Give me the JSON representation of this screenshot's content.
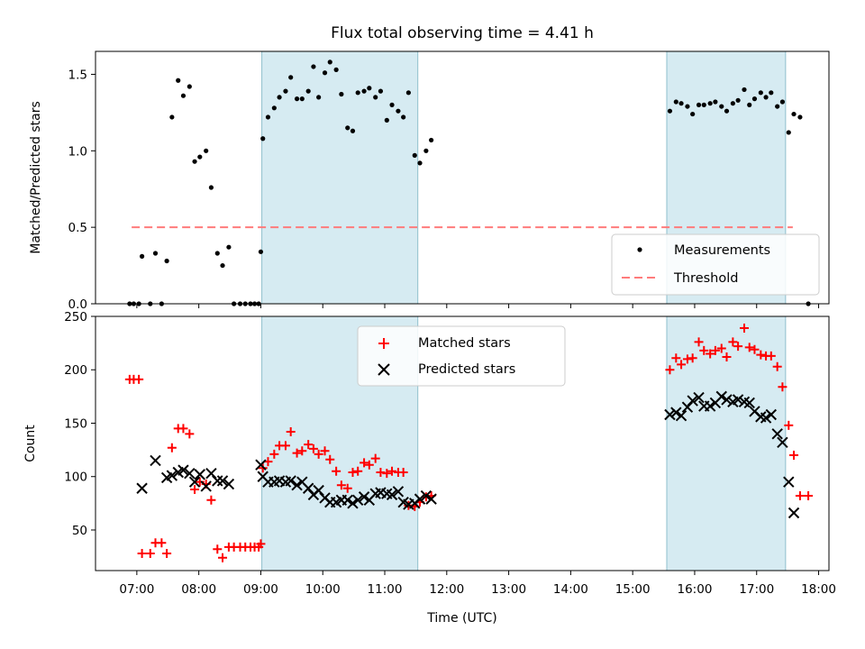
{
  "title": "Flux total observing time = 4.41 h",
  "chart_data": [
    {
      "type": "scatter",
      "ylabel": "Matched/Predicted stars",
      "ylim": [
        0,
        1.65
      ],
      "yticks": [
        "0.0",
        "0.5",
        "1.0",
        "1.5"
      ],
      "shaded_intervals": [
        [
          "09:01",
          "11:32"
        ],
        [
          "15:33",
          "17:28"
        ]
      ],
      "threshold": {
        "name": "Threshold",
        "value": 0.5,
        "x_range": [
          "06:55",
          "17:35"
        ],
        "color": "#ff7070"
      },
      "series": [
        {
          "name": "Measurements",
          "marker": "dot",
          "color": "#000000",
          "points": [
            [
              "06:53",
              0
            ],
            [
              "06:57",
              0
            ],
            [
              "07:02",
              0
            ],
            [
              "07:05",
              0.31
            ],
            [
              "07:13",
              0
            ],
            [
              "07:18",
              0.33
            ],
            [
              "07:24",
              0
            ],
            [
              "07:29",
              0.28
            ],
            [
              "07:34",
              1.22
            ],
            [
              "07:40",
              1.46
            ],
            [
              "07:45",
              1.36
            ],
            [
              "07:51",
              1.42
            ],
            [
              "07:56",
              0.93
            ],
            [
              "08:01",
              0.96
            ],
            [
              "08:07",
              1.0
            ],
            [
              "08:12",
              0.76
            ],
            [
              "08:18",
              0.33
            ],
            [
              "08:23",
              0.25
            ],
            [
              "08:29",
              0.37
            ],
            [
              "08:34",
              0
            ],
            [
              "08:40",
              0
            ],
            [
              "08:45",
              0
            ],
            [
              "08:50",
              0
            ],
            [
              "08:54",
              0
            ],
            [
              "08:58",
              0
            ],
            [
              "09:00",
              0.34
            ],
            [
              "09:02",
              1.08
            ],
            [
              "09:07",
              1.22
            ],
            [
              "09:13",
              1.28
            ],
            [
              "09:18",
              1.35
            ],
            [
              "09:24",
              1.39
            ],
            [
              "09:29",
              1.48
            ],
            [
              "09:35",
              1.34
            ],
            [
              "09:40",
              1.34
            ],
            [
              "09:46",
              1.39
            ],
            [
              "09:51",
              1.55
            ],
            [
              "09:56",
              1.35
            ],
            [
              "10:02",
              1.51
            ],
            [
              "10:07",
              1.58
            ],
            [
              "10:13",
              1.53
            ],
            [
              "10:18",
              1.37
            ],
            [
              "10:24",
              1.15
            ],
            [
              "10:29",
              1.13
            ],
            [
              "10:34",
              1.38
            ],
            [
              "10:40",
              1.39
            ],
            [
              "10:45",
              1.41
            ],
            [
              "10:51",
              1.35
            ],
            [
              "10:56",
              1.39
            ],
            [
              "11:02",
              1.2
            ],
            [
              "11:07",
              1.3
            ],
            [
              "11:13",
              1.26
            ],
            [
              "11:18",
              1.22
            ],
            [
              "11:23",
              1.38
            ],
            [
              "11:29",
              0.97
            ],
            [
              "11:34",
              0.92
            ],
            [
              "11:40",
              1.0
            ],
            [
              "11:45",
              1.07
            ],
            [
              "15:36",
              1.26
            ],
            [
              "15:42",
              1.32
            ],
            [
              "15:47",
              1.31
            ],
            [
              "15:53",
              1.29
            ],
            [
              "15:58",
              1.24
            ],
            [
              "16:04",
              1.3
            ],
            [
              "16:09",
              1.3
            ],
            [
              "16:15",
              1.31
            ],
            [
              "16:20",
              1.32
            ],
            [
              "16:26",
              1.29
            ],
            [
              "16:31",
              1.26
            ],
            [
              "16:37",
              1.31
            ],
            [
              "16:42",
              1.33
            ],
            [
              "16:48",
              1.4
            ],
            [
              "16:53",
              1.3
            ],
            [
              "16:58",
              1.34
            ],
            [
              "17:04",
              1.38
            ],
            [
              "17:09",
              1.35
            ],
            [
              "17:14",
              1.38
            ],
            [
              "17:20",
              1.29
            ],
            [
              "17:25",
              1.32
            ],
            [
              "17:31",
              1.12
            ],
            [
              "17:36",
              1.24
            ],
            [
              "17:42",
              1.22
            ],
            [
              "17:50",
              0
            ]
          ]
        }
      ],
      "legend": {
        "position": "lower-right",
        "entries": [
          "Measurements",
          "Threshold"
        ]
      }
    },
    {
      "type": "scatter",
      "xlabel": "Time (UTC)",
      "ylabel": "Count",
      "ylim": [
        12,
        250
      ],
      "yticks": [
        50,
        100,
        150,
        200,
        250
      ],
      "xlim": [
        "06:20",
        "18:10"
      ],
      "xticks": [
        "07:00",
        "08:00",
        "09:00",
        "10:00",
        "11:00",
        "12:00",
        "13:00",
        "14:00",
        "15:00",
        "16:00",
        "17:00",
        "18:00"
      ],
      "shaded_intervals": [
        [
          "09:01",
          "11:32"
        ],
        [
          "15:33",
          "17:28"
        ]
      ],
      "series": [
        {
          "name": "Matched stars",
          "marker": "plus",
          "color": "#ff0000",
          "points": [
            [
              "06:53",
              191
            ],
            [
              "06:57",
              191
            ],
            [
              "07:02",
              191
            ],
            [
              "07:05",
              28
            ],
            [
              "07:13",
              28
            ],
            [
              "07:18",
              38
            ],
            [
              "07:24",
              38
            ],
            [
              "07:29",
              28
            ],
            [
              "07:34",
              127
            ],
            [
              "07:40",
              145
            ],
            [
              "07:45",
              145
            ],
            [
              "07:51",
              140
            ],
            [
              "07:56",
              88
            ],
            [
              "08:01",
              95
            ],
            [
              "08:07",
              93
            ],
            [
              "08:12",
              78
            ],
            [
              "08:18",
              32
            ],
            [
              "08:23",
              24
            ],
            [
              "08:29",
              34
            ],
            [
              "08:34",
              34
            ],
            [
              "08:40",
              34
            ],
            [
              "08:45",
              34
            ],
            [
              "08:50",
              34
            ],
            [
              "08:54",
              34
            ],
            [
              "08:58",
              34
            ],
            [
              "09:00",
              37
            ],
            [
              "09:02",
              108
            ],
            [
              "09:07",
              114
            ],
            [
              "09:13",
              121
            ],
            [
              "09:18",
              129
            ],
            [
              "09:24",
              129
            ],
            [
              "09:29",
              142
            ],
            [
              "09:35",
              122
            ],
            [
              "09:40",
              124
            ],
            [
              "09:46",
              130
            ],
            [
              "09:51",
              126
            ],
            [
              "09:56",
              121
            ],
            [
              "10:02",
              124
            ],
            [
              "10:07",
              116
            ],
            [
              "10:13",
              105
            ],
            [
              "10:18",
              92
            ],
            [
              "10:24",
              89
            ],
            [
              "10:29",
              104
            ],
            [
              "10:34",
              105
            ],
            [
              "10:40",
              113
            ],
            [
              "10:45",
              111
            ],
            [
              "10:51",
              117
            ],
            [
              "10:56",
              104
            ],
            [
              "11:02",
              103
            ],
            [
              "11:07",
              105
            ],
            [
              "11:13",
              104
            ],
            [
              "11:18",
              104
            ],
            [
              "11:23",
              73
            ],
            [
              "11:29",
              72
            ],
            [
              "11:34",
              76
            ],
            [
              "11:40",
              81
            ],
            [
              "11:45",
              82
            ],
            [
              "15:36",
              200
            ],
            [
              "15:42",
              211
            ],
            [
              "15:47",
              205
            ],
            [
              "15:53",
              210
            ],
            [
              "15:58",
              211
            ],
            [
              "16:04",
              226
            ],
            [
              "16:09",
              218
            ],
            [
              "16:15",
              215
            ],
            [
              "16:20",
              218
            ],
            [
              "16:26",
              220
            ],
            [
              "16:31",
              212
            ],
            [
              "16:37",
              226
            ],
            [
              "16:42",
              222
            ],
            [
              "16:48",
              239
            ],
            [
              "16:53",
              221
            ],
            [
              "16:58",
              219
            ],
            [
              "17:04",
              214
            ],
            [
              "17:09",
              213
            ],
            [
              "17:14",
              213
            ],
            [
              "17:20",
              203
            ],
            [
              "17:25",
              184
            ],
            [
              "17:31",
              148
            ],
            [
              "17:36",
              120
            ],
            [
              "17:42",
              82
            ],
            [
              "17:50",
              82
            ]
          ]
        },
        {
          "name": "Predicted stars",
          "marker": "x",
          "color": "#000000",
          "points": [
            [
              "07:05",
              89
            ],
            [
              "07:18",
              115
            ],
            [
              "07:29",
              99
            ],
            [
              "07:34",
              101
            ],
            [
              "07:40",
              104
            ],
            [
              "07:45",
              106
            ],
            [
              "07:51",
              103
            ],
            [
              "07:56",
              95
            ],
            [
              "08:01",
              102
            ],
            [
              "08:07",
              91
            ],
            [
              "08:12",
              103
            ],
            [
              "08:18",
              96
            ],
            [
              "08:23",
              96
            ],
            [
              "08:29",
              93
            ],
            [
              "09:00",
              111
            ],
            [
              "09:02",
              100
            ],
            [
              "09:07",
              95
            ],
            [
              "09:13",
              95
            ],
            [
              "09:18",
              96
            ],
            [
              "09:24",
              95
            ],
            [
              "09:29",
              96
            ],
            [
              "09:35",
              92
            ],
            [
              "09:40",
              95
            ],
            [
              "09:46",
              89
            ],
            [
              "09:51",
              83
            ],
            [
              "09:56",
              87
            ],
            [
              "10:02",
              80
            ],
            [
              "10:07",
              76
            ],
            [
              "10:13",
              76
            ],
            [
              "10:18",
              78
            ],
            [
              "10:24",
              78
            ],
            [
              "10:29",
              75
            ],
            [
              "10:34",
              78
            ],
            [
              "10:40",
              81
            ],
            [
              "10:45",
              78
            ],
            [
              "10:51",
              84
            ],
            [
              "10:56",
              85
            ],
            [
              "11:02",
              84
            ],
            [
              "11:07",
              83
            ],
            [
              "11:13",
              86
            ],
            [
              "11:18",
              76
            ],
            [
              "11:23",
              74
            ],
            [
              "11:29",
              75
            ],
            [
              "11:34",
              79
            ],
            [
              "11:40",
              82
            ],
            [
              "11:45",
              79
            ],
            [
              "15:36",
              158
            ],
            [
              "15:42",
              160
            ],
            [
              "15:47",
              157
            ],
            [
              "15:53",
              165
            ],
            [
              "15:58",
              171
            ],
            [
              "16:04",
              174
            ],
            [
              "16:09",
              166
            ],
            [
              "16:15",
              166
            ],
            [
              "16:20",
              169
            ],
            [
              "16:26",
              175
            ],
            [
              "16:31",
              172
            ],
            [
              "16:37",
              170
            ],
            [
              "16:42",
              172
            ],
            [
              "16:48",
              170
            ],
            [
              "16:53",
              169
            ],
            [
              "16:58",
              161
            ],
            [
              "17:04",
              156
            ],
            [
              "17:09",
              155
            ],
            [
              "17:14",
              158
            ],
            [
              "17:20",
              140
            ],
            [
              "17:25",
              132
            ],
            [
              "17:31",
              95
            ],
            [
              "17:36",
              66
            ]
          ]
        }
      ],
      "legend": {
        "position": "upper-center",
        "entries": [
          "Matched stars",
          "Predicted stars"
        ]
      }
    }
  ]
}
